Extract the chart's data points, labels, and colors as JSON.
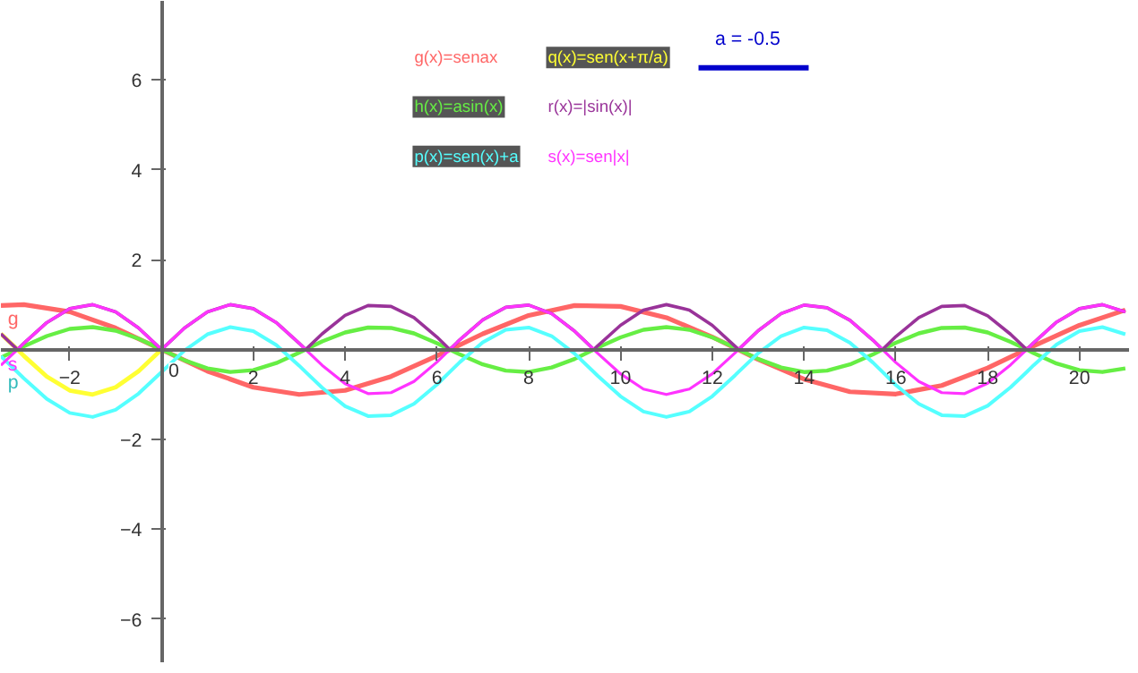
{
  "chart_data": {
    "type": "line",
    "x": [
      -3.5,
      -3.14,
      -3,
      -2.5,
      -2,
      -1.5,
      -1,
      -0.5,
      0,
      0.5,
      1,
      1.5,
      2,
      2.5,
      3,
      3.14,
      3.5,
      4,
      4.5,
      5,
      5.5,
      6,
      6.28,
      6.5,
      7,
      7.5,
      8,
      8.5,
      9,
      9.42,
      9.5,
      10,
      10.5,
      11,
      11.5,
      12,
      12.5,
      12.57,
      13,
      13.5,
      14,
      14.5,
      15,
      15.5,
      15.71,
      16,
      16.5,
      17,
      17.5,
      18,
      18.5,
      18.85,
      19,
      19.5,
      20,
      20.5,
      21
    ],
    "series": [
      {
        "name": "g(x)=senax",
        "color": "#ff6666",
        "x": [
          -3.5,
          -3,
          -2,
          -1,
          0,
          1,
          2,
          3,
          4,
          5,
          6,
          7,
          8,
          9,
          10,
          11,
          12,
          13,
          14,
          15,
          16,
          17,
          18,
          19,
          20,
          21
        ],
        "values": [
          0.98,
          1.0,
          0.84,
          0.48,
          0,
          -0.48,
          -0.84,
          -1.0,
          -0.91,
          -0.6,
          -0.14,
          0.35,
          0.76,
          0.98,
          0.96,
          0.71,
          0.28,
          -0.22,
          -0.66,
          -0.94,
          -0.99,
          -0.8,
          -0.41,
          0.08,
          0.54,
          0.88
        ]
      },
      {
        "name": "q(x)=sen(x+π/a)",
        "color": "#ffff33",
        "values": [
          0.35,
          0,
          -0.14,
          -0.6,
          -0.91,
          -1.0,
          -0.84,
          -0.48,
          0,
          null,
          null,
          null,
          null,
          null,
          null,
          null,
          null,
          null,
          null,
          null,
          null,
          null,
          null,
          null,
          null,
          null,
          null,
          null,
          null,
          null,
          null,
          null,
          null,
          null,
          null,
          null,
          null,
          null,
          null,
          null,
          null,
          null,
          null,
          null,
          null,
          null,
          null,
          null,
          null,
          null,
          null,
          null,
          null,
          null,
          null,
          null,
          null
        ]
      },
      {
        "name": "h(x)=asin(x)",
        "color": "#66ee44",
        "values": [
          -0.18,
          0,
          0.07,
          0.3,
          0.46,
          0.5,
          0.42,
          0.24,
          0,
          -0.24,
          -0.42,
          -0.5,
          -0.46,
          -0.3,
          -0.07,
          0,
          0.18,
          0.38,
          0.49,
          0.48,
          0.36,
          0.14,
          0,
          -0.11,
          -0.33,
          -0.47,
          -0.5,
          -0.4,
          -0.21,
          0,
          0.04,
          0.27,
          0.44,
          0.5,
          0.44,
          0.27,
          0.04,
          0,
          -0.21,
          -0.4,
          -0.5,
          -0.47,
          -0.33,
          -0.11,
          0,
          0.15,
          0.36,
          0.48,
          0.49,
          0.38,
          0.17,
          0,
          -0.08,
          -0.31,
          -0.46,
          -0.5,
          -0.42
        ]
      },
      {
        "name": "r(x)=|sin(x)|",
        "color": "#993399",
        "values": [
          0.35,
          0,
          0.14,
          0.6,
          0.91,
          1.0,
          0.84,
          0.48,
          0,
          0.48,
          0.84,
          1.0,
          0.91,
          0.6,
          0.14,
          0,
          0.35,
          0.76,
          0.98,
          0.96,
          0.71,
          0.28,
          0,
          0.22,
          0.66,
          0.94,
          0.99,
          0.8,
          0.41,
          0,
          0.08,
          0.54,
          0.88,
          1.0,
          0.88,
          0.54,
          0.07,
          0,
          0.42,
          0.8,
          0.99,
          0.93,
          0.65,
          0.21,
          0,
          0.29,
          0.71,
          0.96,
          0.98,
          0.75,
          0.34,
          0,
          0.15,
          0.61,
          0.91,
          1.0,
          0.84
        ]
      },
      {
        "name": "p(x)=sen(x)+a",
        "color": "#55ffff",
        "values": [
          -0.15,
          -0.5,
          -0.64,
          -1.1,
          -1.41,
          -1.5,
          -1.34,
          -0.98,
          -0.5,
          -0.02,
          0.34,
          0.5,
          0.41,
          0.1,
          -0.36,
          -0.5,
          -0.85,
          -1.26,
          -1.48,
          -1.46,
          -1.21,
          -0.78,
          -0.5,
          -0.28,
          0.16,
          0.44,
          0.49,
          0.3,
          -0.09,
          -0.5,
          -0.58,
          -1.04,
          -1.38,
          -1.5,
          -1.38,
          -1.04,
          -0.57,
          -0.5,
          -0.08,
          0.3,
          0.49,
          0.43,
          0.15,
          -0.29,
          -0.5,
          -0.79,
          -1.21,
          -1.46,
          -1.48,
          -1.25,
          -0.84,
          -0.5,
          -0.35,
          0.11,
          0.41,
          0.5,
          0.34
        ]
      },
      {
        "name": "s(x)=sen|x|",
        "color": "#ff33ff",
        "values": [
          -0.35,
          0,
          0.14,
          0.6,
          0.91,
          1.0,
          0.84,
          0.48,
          0,
          0.48,
          0.84,
          1.0,
          0.91,
          0.6,
          0.14,
          0,
          -0.35,
          -0.76,
          -0.98,
          -0.96,
          -0.71,
          -0.28,
          0,
          0.22,
          0.66,
          0.94,
          0.99,
          0.8,
          0.41,
          0,
          -0.08,
          -0.54,
          -0.88,
          -1.0,
          -0.88,
          -0.54,
          -0.07,
          0,
          0.42,
          0.8,
          0.99,
          0.93,
          0.65,
          0.21,
          0,
          -0.29,
          -0.71,
          -0.96,
          -0.98,
          -0.75,
          -0.34,
          0,
          0.15,
          0.61,
          0.91,
          1.0,
          0.84
        ]
      }
    ],
    "xlim": [
      -3.5,
      21.1
    ],
    "ylim": [
      -6.98,
      7.76
    ],
    "xticks": [
      -2,
      {
        "value": 0,
        "label": null
      },
      2,
      4,
      6,
      8,
      10,
      12,
      14,
      16,
      18,
      20
    ],
    "yticks": [
      -6,
      -4,
      -2,
      2,
      4,
      6
    ],
    "grid": false,
    "legend": "top",
    "marker": "none",
    "line_style": "solid",
    "annotations": [
      "g",
      "s",
      "p",
      "0",
      "a = -0.5"
    ]
  }
}
